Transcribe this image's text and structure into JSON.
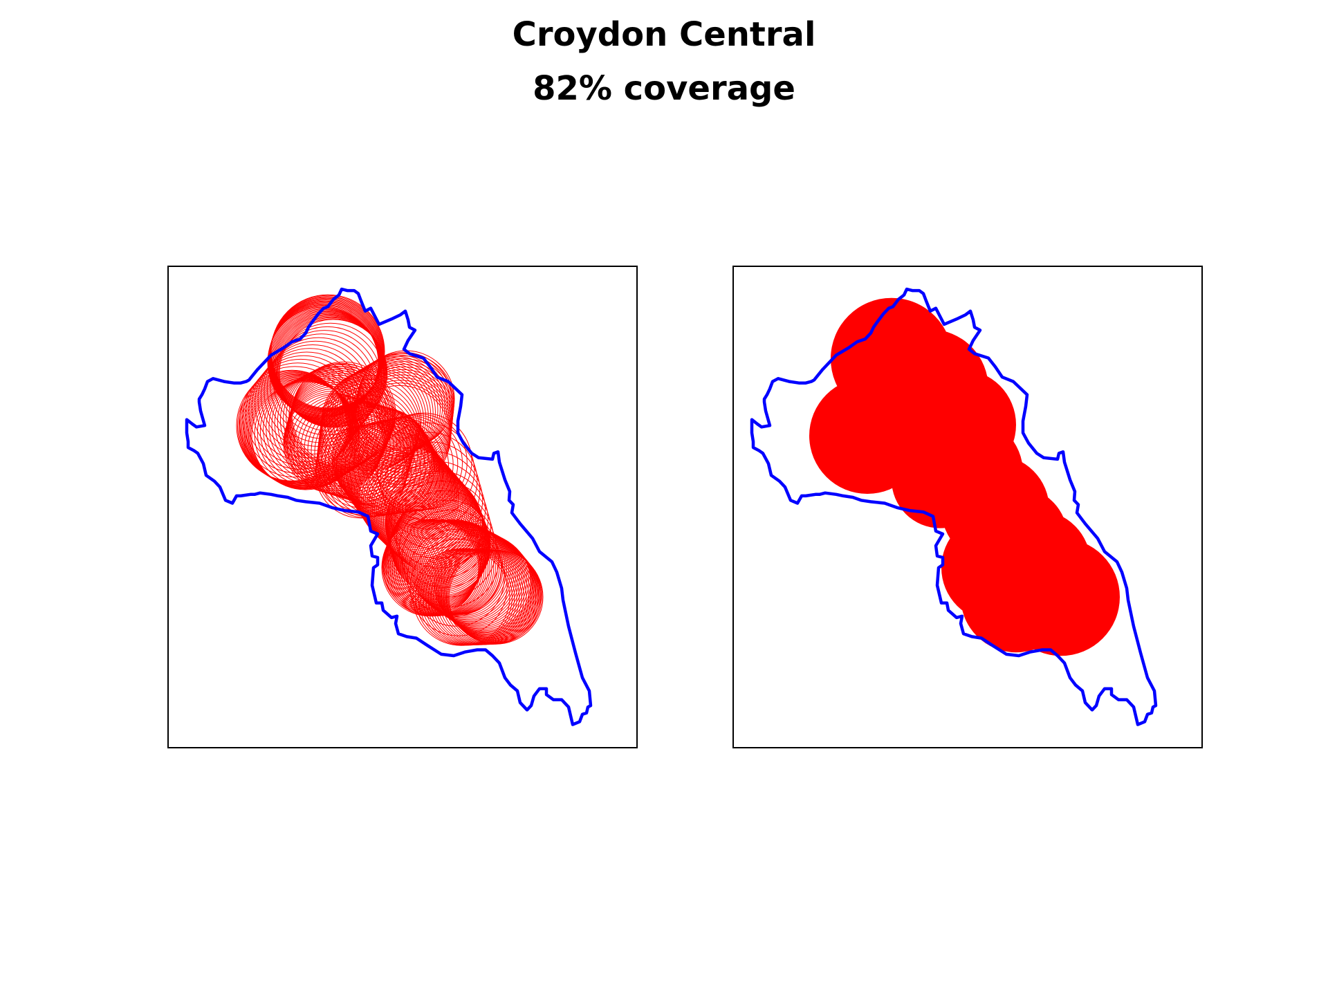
{
  "figure": {
    "title_line1": "Croydon Central",
    "title_line2": "82% coverage"
  },
  "panels": [
    {
      "role": "coverage circles outline",
      "fill": false
    },
    {
      "role": "coverage union filled",
      "fill": true
    }
  ],
  "colors": {
    "boundary": "#0000ff",
    "coverage": "#ff0000",
    "frame": "#000000",
    "background": "#ffffff"
  }
}
